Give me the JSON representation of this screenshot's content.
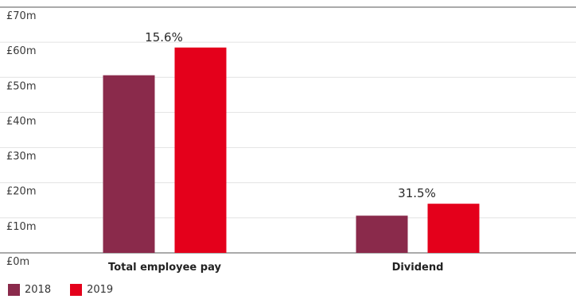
{
  "chart_data": {
    "type": "bar",
    "categories": [
      "Total employee pay",
      "Dividend"
    ],
    "series": [
      {
        "name": "2018",
        "values": [
          50.6,
          10.6
        ],
        "color": "#8a2a4b"
      },
      {
        "name": "2019",
        "values": [
          58.5,
          14.0
        ],
        "color": "#e4001b"
      }
    ],
    "annotations": [
      "15.6%",
      "31.5%"
    ],
    "yticks": [
      "£0m",
      "£10m",
      "£20m",
      "£30m",
      "£40m",
      "£50m",
      "£60m",
      "£70m"
    ],
    "ylim": [
      0,
      70
    ],
    "grid": true,
    "legend_position": "bottom-left"
  }
}
